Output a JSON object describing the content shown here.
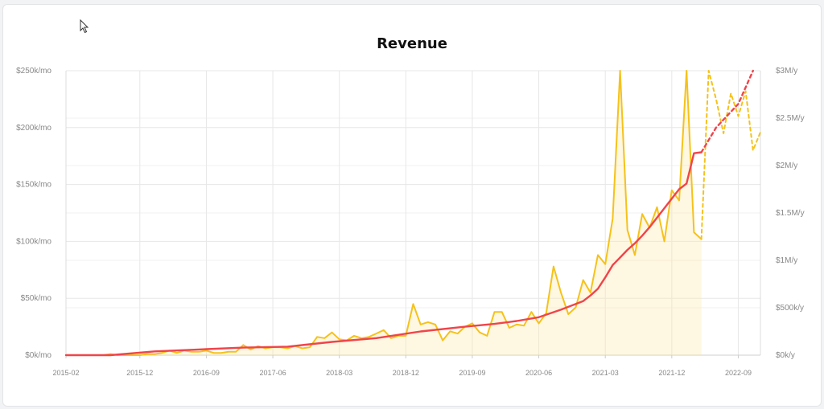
{
  "chart_data": {
    "type": "line",
    "title": "Revenue",
    "x_ticks": [
      "2015-02",
      "2015-12",
      "2016-09",
      "2017-06",
      "2018-03",
      "2018-12",
      "2019-09",
      "2020-06",
      "2021-03",
      "2021-12",
      "2022-09"
    ],
    "y_left_ticks": [
      "$0k/mo",
      "$50k/mo",
      "$100k/mo",
      "$150k/mo",
      "$200k/mo",
      "$250k/mo"
    ],
    "y_right_ticks": [
      "$0k/y",
      "$500k/y",
      "$1M/y",
      "$1.5M/y",
      "$2M/y",
      "$2.5M/y",
      "$3M/y"
    ],
    "ylim_left": [
      0,
      250
    ],
    "ylim_right": [
      0,
      3
    ],
    "x_range": [
      "2015-02",
      "2022-12"
    ],
    "grid": true,
    "colors": {
      "monthly": "#f5c21b",
      "annualized": "#f0444a",
      "fill": "#fbe9a8"
    },
    "series": [
      {
        "key": "monthly_revenue",
        "axis": "left",
        "unit": "$k/mo",
        "x": [
          "2015-02",
          "2015-03",
          "2015-04",
          "2015-05",
          "2015-06",
          "2015-07",
          "2015-08",
          "2015-09",
          "2015-10",
          "2015-11",
          "2015-12",
          "2016-01",
          "2016-02",
          "2016-03",
          "2016-04",
          "2016-05",
          "2016-06",
          "2016-07",
          "2016-08",
          "2016-09",
          "2016-10",
          "2016-11",
          "2016-12",
          "2017-01",
          "2017-02",
          "2017-03",
          "2017-04",
          "2017-05",
          "2017-06",
          "2017-07",
          "2017-08",
          "2017-09",
          "2017-10",
          "2017-11",
          "2017-12",
          "2018-01",
          "2018-02",
          "2018-03",
          "2018-04",
          "2018-05",
          "2018-06",
          "2018-07",
          "2018-08",
          "2018-09",
          "2018-10",
          "2018-11",
          "2018-12",
          "2019-01",
          "2019-02",
          "2019-03",
          "2019-04",
          "2019-05",
          "2019-06",
          "2019-07",
          "2019-08",
          "2019-09",
          "2019-10",
          "2019-11",
          "2019-12",
          "2020-01",
          "2020-02",
          "2020-03",
          "2020-04",
          "2020-05",
          "2020-06",
          "2020-07",
          "2020-08",
          "2020-09",
          "2020-10",
          "2020-11",
          "2020-12",
          "2021-01",
          "2021-02",
          "2021-03",
          "2021-04",
          "2021-05",
          "2021-06",
          "2021-07",
          "2021-08",
          "2021-09",
          "2021-10",
          "2021-11",
          "2021-12",
          "2022-01",
          "2022-02",
          "2022-03",
          "2022-04"
        ],
        "y": [
          0,
          0,
          0,
          0,
          0,
          0,
          1,
          0,
          0,
          0,
          0,
          1,
          1,
          2,
          4,
          2,
          4,
          3,
          3,
          4,
          2,
          2,
          3,
          3,
          9,
          5,
          8,
          6,
          7,
          7,
          6,
          8,
          6,
          7,
          16,
          15,
          20,
          14,
          13,
          17,
          15,
          16,
          19,
          22,
          15,
          17,
          17,
          45,
          27,
          29,
          27,
          13,
          21,
          19,
          25,
          28,
          20,
          17,
          38,
          38,
          24,
          27,
          26,
          38,
          28,
          37,
          78,
          55,
          36,
          42,
          66,
          55,
          88,
          80,
          120,
          270,
          110,
          88,
          124,
          112,
          130,
          100,
          145,
          136,
          265,
          108,
          102
        ]
      },
      {
        "key": "monthly_revenue_forecast",
        "axis": "left",
        "unit": "$k/mo",
        "dashed": true,
        "x": [
          "2022-04",
          "2022-05",
          "2022-06",
          "2022-07",
          "2022-08",
          "2022-09",
          "2022-10",
          "2022-11",
          "2022-12"
        ],
        "y": [
          102,
          260,
          225,
          195,
          230,
          210,
          232,
          180,
          196
        ]
      },
      {
        "key": "annualized_revenue",
        "axis": "right",
        "unit": "$M/y",
        "x": [
          "2015-02",
          "2015-08",
          "2016-02",
          "2016-08",
          "2017-02",
          "2017-08",
          "2018-02",
          "2018-08",
          "2019-02",
          "2019-08",
          "2019-12",
          "2020-03",
          "2020-06",
          "2020-09",
          "2020-12",
          "2021-01",
          "2021-02",
          "2021-03",
          "2021-04",
          "2021-05",
          "2021-06",
          "2021-07",
          "2021-08",
          "2021-09",
          "2021-10",
          "2021-11",
          "2021-12",
          "2022-01",
          "2022-02",
          "2022-03",
          "2022-04"
        ],
        "y": [
          0,
          0,
          0.04,
          0.06,
          0.08,
          0.09,
          0.14,
          0.18,
          0.25,
          0.3,
          0.33,
          0.36,
          0.4,
          0.48,
          0.57,
          0.63,
          0.7,
          0.82,
          0.95,
          1.03,
          1.11,
          1.18,
          1.26,
          1.35,
          1.45,
          1.55,
          1.65,
          1.75,
          1.81,
          2.13,
          2.14
        ]
      },
      {
        "key": "annualized_revenue_forecast",
        "axis": "right",
        "unit": "$M/y",
        "dashed": true,
        "x": [
          "2022-04",
          "2022-06",
          "2022-09",
          "2022-11"
        ],
        "y": [
          2.14,
          2.4,
          2.65,
          3.0
        ]
      }
    ]
  }
}
